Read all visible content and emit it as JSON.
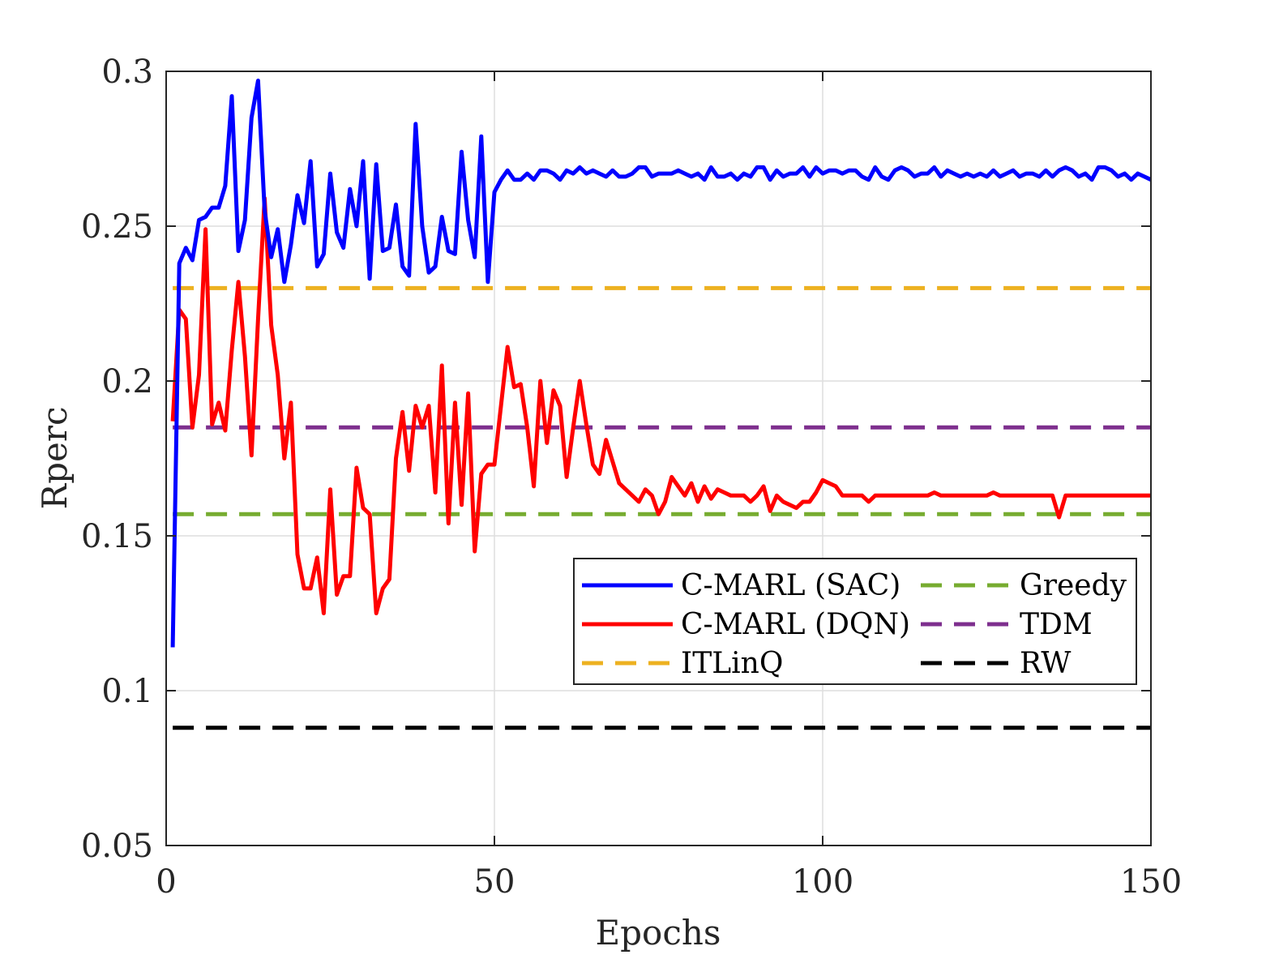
{
  "chart_data": {
    "type": "line",
    "title": "",
    "xlabel": "Epochs",
    "ylabel": "Rperc",
    "xlim": [
      0,
      150
    ],
    "ylim": [
      0.05,
      0.3
    ],
    "xticks": [
      "0",
      "50",
      "100",
      "150"
    ],
    "yticks": [
      "0.05",
      "0.1",
      "0.15",
      "0.2",
      "0.25",
      "0.3"
    ],
    "grid": true,
    "legend_position": "lower-right",
    "series": [
      {
        "name": "C-MARL (SAC)",
        "color": "#0000ff",
        "style": "solid",
        "x": [
          1,
          2,
          3,
          4,
          5,
          6,
          7,
          8,
          9,
          10,
          11,
          12,
          13,
          14,
          15,
          16,
          17,
          18,
          19,
          20,
          21,
          22,
          23,
          24,
          25,
          26,
          27,
          28,
          29,
          30,
          31,
          32,
          33,
          34,
          35,
          36,
          37,
          38,
          39,
          40,
          41,
          42,
          43,
          44,
          45,
          46,
          47,
          48,
          49,
          50,
          51,
          52,
          53,
          54,
          55,
          56,
          57,
          58,
          59,
          60,
          61,
          62,
          63,
          64,
          65,
          66,
          67,
          68,
          69,
          70,
          71,
          72,
          73,
          74,
          75,
          76,
          77,
          78,
          79,
          80,
          81,
          82,
          83,
          84,
          85,
          86,
          87,
          88,
          89,
          90,
          91,
          92,
          93,
          94,
          95,
          96,
          97,
          98,
          99,
          100,
          101,
          102,
          103,
          104,
          105,
          106,
          107,
          108,
          109,
          110,
          111,
          112,
          113,
          114,
          115,
          116,
          117,
          118,
          119,
          120,
          121,
          122,
          123,
          124,
          125,
          126,
          127,
          128,
          129,
          130,
          131,
          132,
          133,
          134,
          135,
          136,
          137,
          138,
          139,
          140,
          141,
          142,
          143,
          144,
          145,
          146,
          147,
          148,
          149,
          150
        ],
        "values": [
          0.114,
          0.238,
          0.243,
          0.239,
          0.252,
          0.253,
          0.256,
          0.256,
          0.263,
          0.292,
          0.242,
          0.252,
          0.285,
          0.297,
          0.255,
          0.24,
          0.249,
          0.232,
          0.244,
          0.26,
          0.251,
          0.271,
          0.237,
          0.241,
          0.267,
          0.248,
          0.243,
          0.262,
          0.25,
          0.271,
          0.233,
          0.27,
          0.242,
          0.243,
          0.257,
          0.237,
          0.234,
          0.283,
          0.25,
          0.235,
          0.237,
          0.253,
          0.242,
          0.241,
          0.274,
          0.252,
          0.24,
          0.279,
          0.232,
          0.261,
          0.265,
          0.268,
          0.265,
          0.265,
          0.267,
          0.265,
          0.268,
          0.268,
          0.267,
          0.265,
          0.268,
          0.267,
          0.269,
          0.267,
          0.268,
          0.267,
          0.266,
          0.268,
          0.266,
          0.266,
          0.267,
          0.269,
          0.269,
          0.266,
          0.267,
          0.267,
          0.267,
          0.268,
          0.267,
          0.266,
          0.267,
          0.265,
          0.269,
          0.266,
          0.266,
          0.267,
          0.265,
          0.267,
          0.266,
          0.269,
          0.269,
          0.265,
          0.268,
          0.266,
          0.267,
          0.267,
          0.269,
          0.266,
          0.269,
          0.267,
          0.268,
          0.268,
          0.267,
          0.268,
          0.268,
          0.266,
          0.265,
          0.269,
          0.266,
          0.265,
          0.268,
          0.269,
          0.268,
          0.266,
          0.267,
          0.267,
          0.269,
          0.266,
          0.268,
          0.267,
          0.266,
          0.267,
          0.266,
          0.267,
          0.266,
          0.268,
          0.266,
          0.267,
          0.268,
          0.266,
          0.267,
          0.267,
          0.266,
          0.268,
          0.266,
          0.268,
          0.269,
          0.268,
          0.266,
          0.267,
          0.265,
          0.269,
          0.269,
          0.268,
          0.266,
          0.267,
          0.265,
          0.267,
          0.266,
          0.265
        ]
      },
      {
        "name": "C-MARL (DQN)",
        "color": "#ff0000",
        "style": "solid",
        "x": [
          1,
          2,
          3,
          4,
          5,
          6,
          7,
          8,
          9,
          10,
          11,
          12,
          13,
          14,
          15,
          16,
          17,
          18,
          19,
          20,
          21,
          22,
          23,
          24,
          25,
          26,
          27,
          28,
          29,
          30,
          31,
          32,
          33,
          34,
          35,
          36,
          37,
          38,
          39,
          40,
          41,
          42,
          43,
          44,
          45,
          46,
          47,
          48,
          49,
          50,
          51,
          52,
          53,
          54,
          55,
          56,
          57,
          58,
          59,
          60,
          61,
          62,
          63,
          64,
          65,
          66,
          67,
          68,
          69,
          70,
          71,
          72,
          73,
          74,
          75,
          76,
          77,
          78,
          79,
          80,
          81,
          82,
          83,
          84,
          85,
          86,
          87,
          88,
          89,
          90,
          91,
          92,
          93,
          94,
          95,
          96,
          97,
          98,
          99,
          100,
          101,
          102,
          103,
          104,
          105,
          106,
          107,
          108,
          109,
          110,
          111,
          112,
          113,
          114,
          115,
          116,
          117,
          118,
          119,
          120,
          121,
          122,
          123,
          124,
          125,
          126,
          127,
          128,
          129,
          130,
          131,
          132,
          133,
          134,
          135,
          136,
          137,
          138,
          139,
          140,
          141,
          142,
          143,
          144,
          145,
          146,
          147,
          148,
          149,
          150
        ],
        "values": [
          0.187,
          0.223,
          0.22,
          0.185,
          0.202,
          0.249,
          0.186,
          0.193,
          0.184,
          0.21,
          0.232,
          0.208,
          0.176,
          0.22,
          0.259,
          0.218,
          0.202,
          0.175,
          0.193,
          0.144,
          0.133,
          0.133,
          0.143,
          0.125,
          0.165,
          0.131,
          0.137,
          0.137,
          0.172,
          0.159,
          0.157,
          0.125,
          0.133,
          0.136,
          0.175,
          0.19,
          0.171,
          0.192,
          0.185,
          0.192,
          0.164,
          0.205,
          0.154,
          0.193,
          0.16,
          0.196,
          0.145,
          0.17,
          0.173,
          0.173,
          0.192,
          0.211,
          0.198,
          0.199,
          0.185,
          0.166,
          0.2,
          0.18,
          0.197,
          0.192,
          0.169,
          0.185,
          0.2,
          0.186,
          0.173,
          0.17,
          0.181,
          0.174,
          0.167,
          0.165,
          0.163,
          0.161,
          0.165,
          0.163,
          0.157,
          0.161,
          0.169,
          0.166,
          0.163,
          0.167,
          0.161,
          0.166,
          0.162,
          0.165,
          0.164,
          0.163,
          0.163,
          0.163,
          0.161,
          0.163,
          0.166,
          0.158,
          0.163,
          0.161,
          0.16,
          0.159,
          0.161,
          0.161,
          0.164,
          0.168,
          0.167,
          0.166,
          0.163,
          0.163,
          0.163,
          0.163,
          0.161,
          0.163,
          0.163,
          0.163,
          0.163,
          0.163,
          0.163,
          0.163,
          0.163,
          0.163,
          0.164,
          0.163,
          0.163,
          0.163,
          0.163,
          0.163,
          0.163,
          0.163,
          0.163,
          0.164,
          0.163,
          0.163,
          0.163,
          0.163,
          0.163,
          0.163,
          0.163,
          0.163,
          0.163,
          0.156,
          0.163,
          0.163,
          0.163,
          0.163,
          0.163,
          0.163,
          0.163,
          0.163,
          0.163,
          0.163,
          0.163,
          0.163,
          0.163,
          0.163
        ]
      },
      {
        "name": "ITLinQ",
        "color": "#edb120",
        "style": "dashed",
        "x": [
          1,
          150
        ],
        "values": [
          0.23,
          0.23
        ]
      },
      {
        "name": "Greedy",
        "color": "#77ac30",
        "style": "dashed",
        "x": [
          1,
          150
        ],
        "values": [
          0.157,
          0.157
        ]
      },
      {
        "name": "TDM",
        "color": "#7e2f8e",
        "style": "dashed",
        "x": [
          1,
          150
        ],
        "values": [
          0.185,
          0.185
        ]
      },
      {
        "name": "RW",
        "color": "#000000",
        "style": "dashed",
        "x": [
          1,
          150
        ],
        "values": [
          0.088,
          0.088
        ]
      }
    ]
  }
}
